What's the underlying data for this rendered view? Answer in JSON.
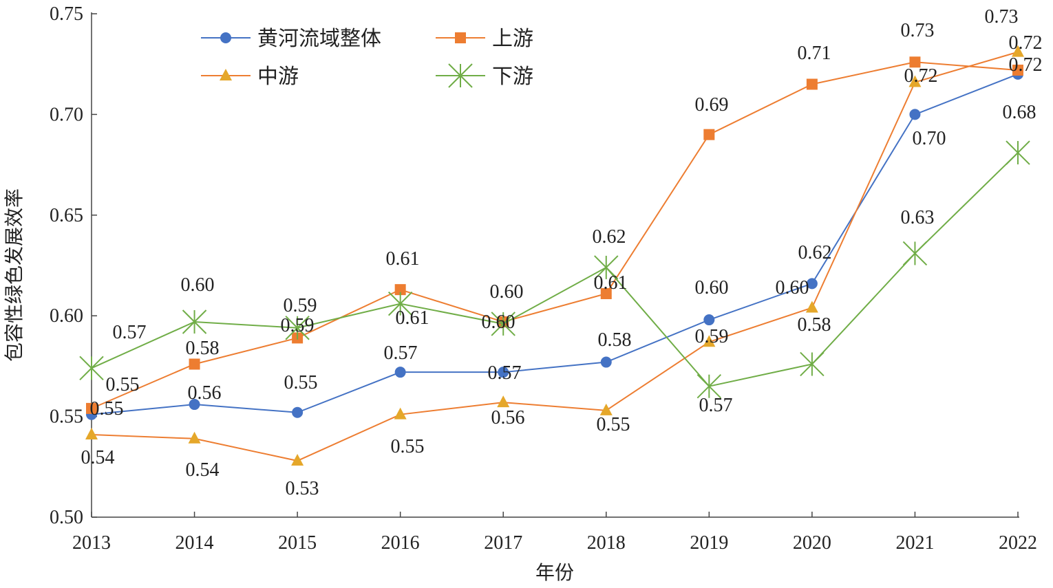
{
  "chart_data": {
    "type": "line",
    "title": "",
    "xlabel": "年份",
    "ylabel": "包容性绿色发展效率",
    "ylim": [
      0.5,
      0.75
    ],
    "yticks": [
      "0.50",
      "0.55",
      "0.60",
      "0.65",
      "0.70",
      "0.75"
    ],
    "categories": [
      "2013",
      "2014",
      "2015",
      "2016",
      "2017",
      "2018",
      "2019",
      "2020",
      "2021",
      "2022"
    ],
    "legend_position": "top-left",
    "grid": false,
    "series": [
      {
        "name": "黄河流域整体",
        "marker": "circle",
        "color": "#4472C4",
        "line_color": "#4472C4",
        "values": [
          0.551,
          0.556,
          0.552,
          0.572,
          0.572,
          0.577,
          0.598,
          0.616,
          0.7,
          0.72
        ],
        "labels": [
          "0.55",
          "0.56",
          "0.55",
          "0.57",
          "0.57",
          "0.58",
          "0.60",
          "0.62",
          "0.70",
          "0.72"
        ]
      },
      {
        "name": "上游",
        "marker": "square",
        "color": "#ED7D31",
        "line_color": "#ED7D31",
        "values": [
          0.554,
          0.576,
          0.589,
          0.613,
          0.597,
          0.611,
          0.69,
          0.715,
          0.726,
          0.722
        ],
        "labels": [
          "0.55",
          "0.58",
          "0.59",
          "0.61",
          "0.60",
          "0.61",
          "0.69",
          "0.71",
          "0.73",
          "0.72"
        ]
      },
      {
        "name": "中游",
        "marker": "triangle",
        "color": "#E5A72A",
        "line_color": "#ED7D31",
        "values": [
          0.541,
          0.539,
          0.528,
          0.551,
          0.557,
          0.553,
          0.587,
          0.604,
          0.716,
          0.731
        ],
        "labels": [
          "0.54",
          "0.54",
          "0.53",
          "0.55",
          "0.56",
          "0.55",
          "0.59",
          "0.60",
          "0.72",
          "0.73"
        ]
      },
      {
        "name": "下游",
        "marker": "x-star",
        "color": "#70AD47",
        "line_color": "#70AD47",
        "values": [
          0.574,
          0.597,
          0.594,
          0.606,
          0.596,
          0.624,
          0.565,
          0.576,
          0.631,
          0.681
        ],
        "labels": [
          "0.57",
          "0.60",
          "0.59",
          "0.61",
          "0.60",
          "0.62",
          "0.57",
          "0.58",
          "0.63",
          "0.68"
        ]
      }
    ]
  }
}
